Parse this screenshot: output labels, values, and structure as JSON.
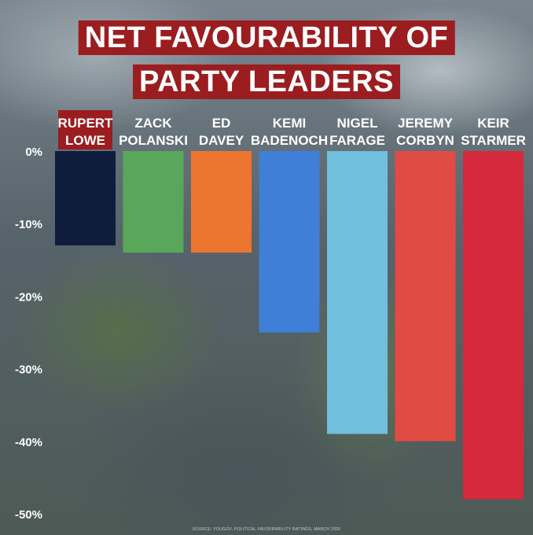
{
  "title_lines": [
    "NET FAVOURABILITY OF",
    "PARTY LEADERS"
  ],
  "source_note": "SOURCE: YOUGOV, POLITICAL FAVOURABILITY RATINGS, MARCH 2026",
  "chart_data": {
    "type": "bar",
    "title": "NET FAVOURABILITY OF PARTY LEADERS",
    "categories": [
      "RUPERT LOWE",
      "ZACK POLANSKI",
      "ED DAVEY",
      "KEMI BADENOCH",
      "NIGEL FARAGE",
      "JEREMY CORBYN",
      "KEIR STARMER"
    ],
    "category_lines": [
      [
        "RUPERT",
        "LOWE"
      ],
      [
        "ZACK",
        "POLANSKI"
      ],
      [
        "ED",
        "DAVEY"
      ],
      [
        "KEMI",
        "BADENOCH"
      ],
      [
        "NIGEL",
        "FARAGE"
      ],
      [
        "JEREMY",
        "CORBYN"
      ],
      [
        "KEIR",
        "STARMER"
      ]
    ],
    "values": [
      -13,
      -14,
      -14,
      -25,
      -39,
      -40,
      -48
    ],
    "colors": [
      "#0f1c3b",
      "#58a75a",
      "#ec7630",
      "#3f7fd8",
      "#6fbfdd",
      "#e04b44",
      "#d42a3c"
    ],
    "highlighted_label_index": 0,
    "highlight_color": "#9b1d20",
    "ylim": [
      -50,
      0
    ],
    "yticks": [
      0,
      -10,
      -20,
      -30,
      -40,
      -50
    ],
    "ytick_labels": [
      "0%",
      "-10%",
      "-20%",
      "-30%",
      "-40%",
      "-50%"
    ],
    "grid": false,
    "legend": "none"
  }
}
